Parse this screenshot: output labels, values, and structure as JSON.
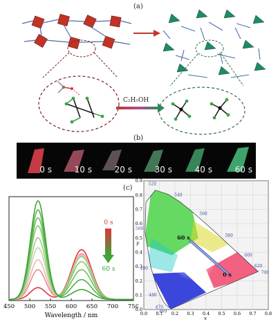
{
  "panel_a": {
    "label": "(a)",
    "reagent_label": "C₂H₅OH"
  },
  "panel_b": {
    "label": "(b)",
    "frames": [
      {
        "time": "0 s",
        "color": "#d9404c"
      },
      {
        "time": "10 s",
        "color": "#b05568"
      },
      {
        "time": "20 s",
        "color": "#7c6a72"
      },
      {
        "time": "30 s",
        "color": "#4f8b66"
      },
      {
        "time": "40 s",
        "color": "#3f9d6a"
      },
      {
        "time": "60 s",
        "color": "#45b578"
      }
    ]
  },
  "panel_c": {
    "label": "(c)"
  },
  "chart_data": [
    {
      "type": "line",
      "xlabel": "Wavelength / nm",
      "ylabel": "",
      "xlim": [
        450,
        750
      ],
      "x_ticks": [
        450,
        500,
        550,
        600,
        650,
        700,
        750
      ],
      "legend": {
        "start": "0 s",
        "end": "60 s",
        "placement": "top-right"
      },
      "series": [
        {
          "color": "#e2343c",
          "peaks": [
            [
              520,
              0.12
            ],
            [
              625,
              0.5
            ]
          ]
        },
        {
          "color": "#ee8a90",
          "peaks": [
            [
              520,
              0.3
            ],
            [
              625,
              0.46
            ]
          ]
        },
        {
          "color": "#f2b7b3",
          "peaks": [
            [
              520,
              0.4
            ],
            [
              625,
              0.45
            ]
          ]
        },
        {
          "color": "#bcd9a8",
          "peaks": [
            [
              520,
              0.52
            ],
            [
              625,
              0.44
            ]
          ]
        },
        {
          "color": "#9ccf88",
          "peaks": [
            [
              520,
              0.62
            ],
            [
              625,
              0.43
            ]
          ]
        },
        {
          "color": "#86c571",
          "peaks": [
            [
              520,
              0.74
            ],
            [
              625,
              0.38
            ]
          ]
        },
        {
          "color": "#6fbc5d",
          "peaks": [
            [
              520,
              0.82
            ],
            [
              625,
              0.3
            ]
          ]
        },
        {
          "color": "#54b04a",
          "peaks": [
            [
              520,
              0.9
            ],
            [
              625,
              0.2
            ]
          ]
        },
        {
          "color": "#3fa43a",
          "peaks": [
            [
              520,
              0.99
            ],
            [
              625,
              0.1
            ]
          ]
        }
      ]
    },
    {
      "type": "scatter",
      "title": "",
      "xlabel": "x",
      "ylabel": "y",
      "xlim": [
        0.0,
        0.8
      ],
      "ylim": [
        0.0,
        0.9
      ],
      "x_ticks": [
        "0.0",
        "0.1",
        "0.2",
        "0.3",
        "0.4",
        "0.5",
        "0.6",
        "0.7",
        "0.8"
      ],
      "y_ticks": [
        "0.0",
        "0.1",
        "0.2",
        "0.3",
        "0.4",
        "0.5",
        "0.6",
        "0.7",
        "0.8",
        "0.9"
      ],
      "locus_labels": [
        {
          "nm": "460",
          "x": 0.144,
          "y": 0.03
        },
        {
          "nm": "470",
          "x": 0.124,
          "y": 0.058
        },
        {
          "nm": "480",
          "x": 0.091,
          "y": 0.133
        },
        {
          "nm": "490",
          "x": 0.045,
          "y": 0.295
        },
        {
          "nm": "500",
          "x": 0.008,
          "y": 0.538
        },
        {
          "nm": "520",
          "x": 0.074,
          "y": 0.834
        },
        {
          "nm": "540",
          "x": 0.23,
          "y": 0.754
        },
        {
          "nm": "560",
          "x": 0.373,
          "y": 0.624
        },
        {
          "nm": "580",
          "x": 0.512,
          "y": 0.487
        },
        {
          "nm": "600",
          "x": 0.627,
          "y": 0.373
        },
        {
          "nm": "620",
          "x": 0.691,
          "y": 0.308
        },
        {
          "nm": "700",
          "x": 0.735,
          "y": 0.265
        }
      ],
      "trajectory": {
        "start_label": "0 s",
        "end_label": "60 s",
        "start": [
          0.54,
          0.25
        ],
        "end": [
          0.3,
          0.48
        ]
      }
    }
  ]
}
